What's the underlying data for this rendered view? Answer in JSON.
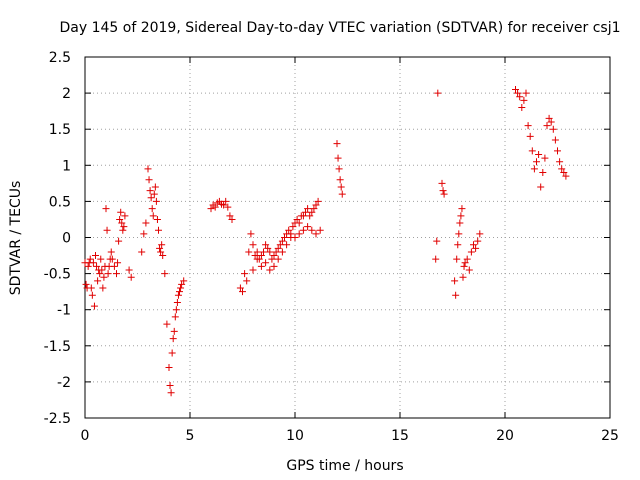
{
  "chart_data": {
    "type": "scatter",
    "title": "Day 145 of 2019, Sidereal Day-to-day VTEC variation (SDTVAR) for receiver csj1",
    "xlabel": "GPS time / hours",
    "ylabel": "SDTVAR / TECUs",
    "xlim": [
      0,
      25
    ],
    "ylim": [
      -2.5,
      2.5
    ],
    "xticks": [
      0,
      5,
      10,
      15,
      20,
      25
    ],
    "xtick_labels": [
      "0",
      "5",
      "10",
      "15",
      "20",
      "25"
    ],
    "yticks": [
      -2.5,
      -2,
      -1.5,
      -1,
      -0.5,
      0,
      0.5,
      1,
      1.5,
      2,
      2.5
    ],
    "ytick_labels": [
      "-2.5",
      "-2",
      "-1.5",
      "-1",
      "-0.5",
      "0",
      "0.5",
      "1",
      "1.5",
      "2",
      "2.5"
    ],
    "grid": true,
    "marker": "+",
    "color": "#e00000",
    "series": [
      {
        "name": "SDTVAR",
        "x": [
          0.0,
          0.05,
          0.1,
          0.15,
          0.2,
          0.25,
          0.3,
          0.35,
          0.4,
          0.45,
          0.5,
          0.55,
          0.6,
          0.65,
          0.7,
          0.75,
          0.8,
          0.85,
          0.9,
          0.95,
          1.0,
          1.05,
          1.1,
          1.15,
          1.2,
          1.25,
          1.3,
          1.4,
          1.5,
          1.55,
          1.6,
          1.65,
          1.7,
          1.75,
          1.8,
          1.85,
          1.9,
          2.1,
          2.2,
          2.7,
          2.8,
          2.9,
          3.0,
          3.05,
          3.1,
          3.15,
          3.2,
          3.25,
          3.3,
          3.35,
          3.4,
          3.45,
          3.5,
          3.55,
          3.6,
          3.65,
          3.7,
          3.8,
          3.9,
          4.0,
          4.05,
          4.1,
          4.15,
          4.2,
          4.25,
          4.3,
          4.35,
          4.4,
          4.45,
          4.5,
          4.55,
          4.6,
          4.7,
          6.0,
          6.1,
          6.2,
          6.3,
          6.4,
          6.5,
          6.6,
          6.7,
          6.8,
          6.9,
          7.0,
          7.4,
          7.5,
          7.6,
          7.7,
          7.8,
          7.9,
          8.0,
          8.1,
          8.2,
          8.3,
          8.4,
          8.5,
          8.6,
          8.7,
          8.8,
          8.9,
          9.0,
          9.1,
          9.2,
          9.3,
          9.4,
          9.5,
          9.6,
          9.7,
          9.8,
          9.9,
          10.0,
          10.1,
          10.2,
          10.3,
          10.4,
          10.5,
          10.6,
          10.7,
          10.8,
          10.9,
          11.0,
          11.1,
          8.0,
          8.2,
          8.4,
          8.6,
          8.8,
          9.0,
          9.2,
          9.4,
          9.6,
          9.8,
          10.0,
          10.2,
          10.4,
          10.6,
          10.8,
          11.0,
          11.2,
          12.0,
          12.05,
          12.1,
          12.15,
          12.2,
          12.25,
          16.7,
          16.75,
          16.8,
          17.0,
          17.05,
          17.1,
          17.6,
          17.65,
          17.7,
          17.75,
          17.8,
          17.85,
          17.9,
          17.95,
          18.0,
          18.05,
          18.1,
          18.2,
          18.3,
          18.4,
          18.5,
          18.6,
          18.7,
          18.8,
          20.5,
          20.6,
          20.7,
          20.8,
          20.9,
          21.0,
          21.1,
          21.2,
          21.3,
          21.4,
          21.5,
          21.6,
          21.7,
          21.8,
          21.9,
          22.0,
          22.1,
          22.2,
          22.3,
          22.4,
          22.5,
          22.6,
          22.7,
          22.8,
          22.9
        ],
        "y": [
          -0.35,
          -0.65,
          -0.7,
          -0.4,
          -0.35,
          -0.3,
          -0.7,
          -0.8,
          -0.35,
          -0.95,
          -0.25,
          -0.4,
          -0.6,
          -0.45,
          -0.5,
          -0.3,
          -0.45,
          -0.7,
          -0.55,
          -0.4,
          0.4,
          0.1,
          -0.5,
          -0.4,
          -0.3,
          -0.2,
          -0.3,
          -0.4,
          -0.5,
          -0.35,
          -0.05,
          0.25,
          0.35,
          0.2,
          0.1,
          0.15,
          0.3,
          -0.45,
          -0.55,
          -0.2,
          0.05,
          0.2,
          0.95,
          0.8,
          0.65,
          0.55,
          0.4,
          0.3,
          0.6,
          0.7,
          0.5,
          0.25,
          0.1,
          -0.15,
          -0.2,
          -0.1,
          -0.25,
          -0.5,
          -1.2,
          -1.8,
          -2.05,
          -2.15,
          -1.6,
          -1.4,
          -1.3,
          -1.1,
          -1.0,
          -0.9,
          -0.8,
          -0.75,
          -0.7,
          -0.65,
          -0.6,
          0.4,
          0.45,
          0.42,
          0.48,
          0.5,
          0.46,
          0.45,
          0.5,
          0.42,
          0.3,
          0.25,
          -0.7,
          -0.75,
          -0.5,
          -0.6,
          -0.2,
          0.05,
          -0.1,
          -0.25,
          -0.2,
          -0.3,
          -0.25,
          -0.2,
          -0.1,
          -0.15,
          -0.2,
          -0.3,
          -0.25,
          -0.2,
          -0.15,
          -0.1,
          -0.05,
          0.0,
          0.05,
          0.1,
          0.05,
          0.15,
          0.2,
          0.25,
          0.2,
          0.3,
          0.3,
          0.35,
          0.4,
          0.3,
          0.35,
          0.4,
          0.45,
          0.5,
          -0.45,
          -0.3,
          -0.4,
          -0.35,
          -0.45,
          -0.4,
          -0.3,
          -0.2,
          -0.1,
          0.0,
          0.0,
          0.05,
          0.1,
          0.15,
          0.1,
          0.05,
          0.1,
          1.3,
          1.1,
          0.95,
          0.8,
          0.7,
          0.6,
          -0.3,
          -0.05,
          2.0,
          0.75,
          0.65,
          0.6,
          -0.6,
          -0.8,
          -0.3,
          -0.1,
          0.05,
          0.2,
          0.3,
          0.4,
          -0.55,
          -0.4,
          -0.35,
          -0.3,
          -0.45,
          -0.2,
          -0.1,
          -0.15,
          -0.05,
          0.05,
          2.05,
          2.0,
          1.95,
          1.8,
          1.9,
          2.0,
          1.55,
          1.4,
          1.2,
          0.95,
          1.05,
          1.15,
          0.7,
          0.9,
          1.1,
          1.55,
          1.65,
          1.6,
          1.5,
          1.35,
          1.2,
          1.05,
          0.95,
          0.9,
          0.85
        ]
      }
    ]
  }
}
